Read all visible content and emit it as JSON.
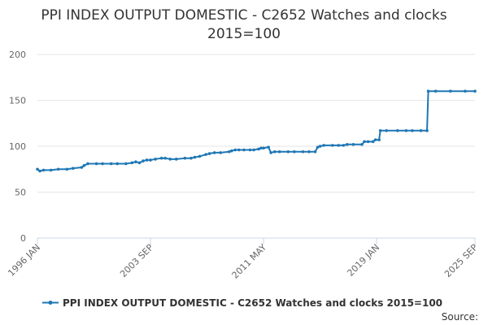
{
  "chart_data": {
    "type": "line",
    "title": [
      "PPI INDEX OUTPUT DOMESTIC - C2652 Watches and clocks",
      "2015=100"
    ],
    "xlabel": "",
    "ylabel": "",
    "ylim": [
      0,
      200
    ],
    "yticks": [
      "0",
      "50",
      "100",
      "150",
      "200"
    ],
    "xticks": [
      "1996 JAN",
      "2003 SEP",
      "2011 MAY",
      "2019 JAN",
      "2025 SEP"
    ],
    "grid": true,
    "legend_position": "bottom",
    "series": [
      {
        "name": "PPI INDEX OUTPUT DOMESTIC - C2652 Watches and clocks 2015=100",
        "color": "#1f77b4",
        "points": [
          [
            "1996-01",
            75
          ],
          [
            "1996-03",
            73
          ],
          [
            "1996-06",
            74
          ],
          [
            "1996-12",
            74
          ],
          [
            "1997-06",
            75
          ],
          [
            "1998-01",
            75
          ],
          [
            "1998-06",
            76
          ],
          [
            "1999-01",
            77
          ],
          [
            "1999-03",
            79
          ],
          [
            "1999-06",
            81
          ],
          [
            "2000-01",
            81
          ],
          [
            "2000-06",
            81
          ],
          [
            "2001-01",
            81
          ],
          [
            "2001-06",
            81
          ],
          [
            "2002-01",
            81
          ],
          [
            "2002-06",
            82
          ],
          [
            "2002-09",
            83
          ],
          [
            "2002-12",
            82
          ],
          [
            "2003-03",
            84
          ],
          [
            "2003-06",
            85
          ],
          [
            "2003-09",
            85
          ],
          [
            "2004-01",
            86
          ],
          [
            "2004-06",
            87
          ],
          [
            "2004-09",
            87
          ],
          [
            "2005-01",
            86
          ],
          [
            "2005-06",
            86
          ],
          [
            "2006-01",
            87
          ],
          [
            "2006-06",
            87
          ],
          [
            "2006-09",
            88
          ],
          [
            "2007-01",
            89
          ],
          [
            "2007-06",
            91
          ],
          [
            "2007-09",
            92
          ],
          [
            "2008-01",
            93
          ],
          [
            "2008-06",
            93
          ],
          [
            "2009-01",
            94
          ],
          [
            "2009-03",
            95
          ],
          [
            "2009-06",
            96
          ],
          [
            "2009-09",
            96
          ],
          [
            "2010-01",
            96
          ],
          [
            "2010-06",
            96
          ],
          [
            "2010-09",
            96
          ],
          [
            "2011-01",
            97
          ],
          [
            "2011-03",
            98
          ],
          [
            "2011-05",
            98
          ],
          [
            "2011-09",
            99
          ],
          [
            "2011-11",
            93
          ],
          [
            "2012-02",
            94
          ],
          [
            "2012-06",
            94
          ],
          [
            "2013-01",
            94
          ],
          [
            "2013-06",
            94
          ],
          [
            "2014-01",
            94
          ],
          [
            "2014-06",
            94
          ],
          [
            "2014-11",
            94
          ],
          [
            "2015-01",
            99
          ],
          [
            "2015-03",
            100
          ],
          [
            "2015-06",
            101
          ],
          [
            "2016-01",
            101
          ],
          [
            "2016-06",
            101
          ],
          [
            "2016-10",
            101
          ],
          [
            "2017-01",
            102
          ],
          [
            "2017-06",
            102
          ],
          [
            "2018-01",
            102
          ],
          [
            "2018-03",
            105
          ],
          [
            "2018-06",
            105
          ],
          [
            "2018-10",
            105
          ],
          [
            "2018-12",
            107
          ],
          [
            "2019-03",
            107
          ],
          [
            "2019-04",
            117
          ],
          [
            "2019-09",
            117
          ],
          [
            "2020-06",
            117
          ],
          [
            "2021-01",
            117
          ],
          [
            "2021-06",
            117
          ],
          [
            "2022-01",
            117
          ],
          [
            "2022-06",
            117
          ],
          [
            "2022-07",
            160
          ],
          [
            "2023-01",
            160
          ],
          [
            "2024-01",
            160
          ],
          [
            "2025-01",
            160
          ],
          [
            "2025-09",
            160
          ]
        ]
      }
    ]
  },
  "legend": {
    "label": "PPI INDEX OUTPUT DOMESTIC - C2652 Watches and clocks 2015=100"
  },
  "source_label": "Source:"
}
